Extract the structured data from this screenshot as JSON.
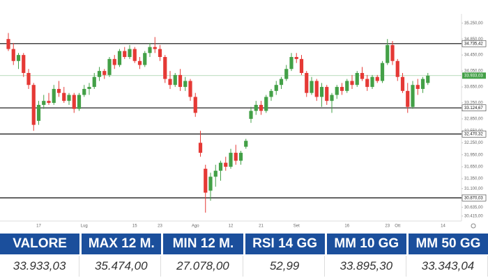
{
  "chart_data": {
    "type": "candlestick",
    "categories": [
      null,
      null,
      null,
      null,
      null,
      null,
      "17",
      null,
      null,
      null,
      null,
      null,
      null,
      null,
      null,
      "Lug",
      null,
      null,
      null,
      null,
      null,
      null,
      null,
      null,
      null,
      "15",
      null,
      null,
      null,
      null,
      "23",
      null,
      null,
      null,
      null,
      null,
      null,
      "Ago",
      null,
      null,
      null,
      null,
      null,
      null,
      "12",
      null,
      null,
      null,
      null,
      null,
      "21",
      null,
      null,
      null,
      null,
      null,
      null,
      "Set",
      null,
      null,
      null,
      null,
      null,
      null,
      null,
      null,
      null,
      "16",
      null,
      null,
      null,
      null,
      null,
      null,
      null,
      "23",
      null,
      "Ott",
      null,
      null,
      null,
      null,
      null,
      null,
      null,
      null,
      "14",
      null,
      null
    ],
    "open": [
      34850,
      34600,
      34300,
      34450,
      34000,
      33700,
      32800,
      33200,
      33300,
      33250,
      33600,
      33500,
      33300,
      33450,
      33100,
      33450,
      33600,
      33650,
      33900,
      34050,
      33950,
      34350,
      34200,
      34550,
      34400,
      34600,
      34300,
      34200,
      34500,
      34650,
      34600,
      34400,
      33850,
      33700,
      33950,
      33650,
      33800,
      33400,
      32250,
      31600,
      31050,
      31400,
      31550,
      31750,
      31650,
      32000,
      31800,
      32150,
      32850,
      33050,
      33200,
      33050,
      33400,
      33550,
      33700,
      33850,
      34100,
      34400,
      34350,
      34000,
      33500,
      33800,
      33400,
      33650,
      33300,
      33450,
      33650,
      33550,
      33800,
      33700,
      34000,
      33850,
      33650,
      33900,
      33800,
      34250,
      34700,
      34300,
      33900,
      33550,
      33150,
      33700,
      33600,
      33750,
      null,
      null,
      null,
      null,
      null
    ],
    "high": [
      35000,
      34750,
      34500,
      34500,
      34100,
      33750,
      33300,
      33450,
      33500,
      33700,
      33800,
      33650,
      33500,
      33500,
      33500,
      33700,
      33750,
      34000,
      34150,
      34100,
      34400,
      34450,
      34600,
      34650,
      34700,
      34650,
      34400,
      34550,
      34750,
      34900,
      34700,
      34450,
      34050,
      34000,
      34100,
      33900,
      33850,
      33500,
      32550,
      31700,
      31500,
      31700,
      31800,
      31900,
      32100,
      32200,
      32050,
      32350,
      33150,
      33300,
      33300,
      33450,
      33600,
      33800,
      33900,
      34200,
      34500,
      34500,
      34450,
      34050,
      33900,
      33850,
      33750,
      33700,
      33500,
      33700,
      33750,
      33850,
      33950,
      34050,
      34150,
      33950,
      33950,
      33950,
      34300,
      34850,
      34800,
      34350,
      34000,
      33750,
      33800,
      33850,
      33900,
      34000,
      null,
      null,
      null,
      null,
      null
    ],
    "low": [
      34550,
      34200,
      34100,
      33900,
      33600,
      32550,
      32700,
      33100,
      33200,
      33200,
      33400,
      33250,
      33200,
      33000,
      33050,
      33400,
      33450,
      33600,
      33800,
      33850,
      33900,
      34100,
      34150,
      34350,
      34350,
      34250,
      34100,
      34150,
      34400,
      34500,
      34300,
      33750,
      33600,
      33650,
      33550,
      33550,
      33300,
      32900,
      31900,
      30500,
      30800,
      31150,
      31300,
      31550,
      31600,
      31700,
      31700,
      32100,
      32750,
      32950,
      32950,
      33000,
      33300,
      33450,
      33600,
      33800,
      34050,
      34250,
      33950,
      33400,
      33450,
      33300,
      33150,
      33200,
      33000,
      33350,
      33450,
      33500,
      33600,
      33650,
      33800,
      33550,
      33600,
      33750,
      33750,
      34200,
      34200,
      33800,
      33500,
      33000,
      33100,
      33450,
      33500,
      33700,
      null,
      null,
      null,
      null,
      null
    ],
    "close": [
      34600,
      34300,
      34450,
      34000,
      33700,
      32700,
      33200,
      33300,
      33250,
      33600,
      33500,
      33300,
      33450,
      33100,
      33450,
      33600,
      33650,
      33900,
      34050,
      33950,
      34350,
      34200,
      34550,
      34400,
      34600,
      34300,
      34200,
      34500,
      34650,
      34600,
      34400,
      33850,
      33700,
      33950,
      33650,
      33800,
      33400,
      33000,
      32000,
      31000,
      31400,
      31550,
      31750,
      31650,
      32000,
      31800,
      32000,
      32300,
      33050,
      33200,
      33050,
      33400,
      33550,
      33700,
      33850,
      34100,
      34400,
      34350,
      34000,
      33500,
      33800,
      33400,
      33650,
      33300,
      33450,
      33650,
      33550,
      33800,
      33700,
      34000,
      33850,
      33650,
      33900,
      33800,
      34250,
      34700,
      34300,
      33900,
      33550,
      33150,
      33700,
      33600,
      33850,
      33933.03,
      null,
      null,
      null,
      null,
      null
    ],
    "up_color": "#43a047",
    "down_color": "#e53935",
    "ylim": [
      30290,
      35480
    ],
    "yticks": [
      {
        "value": 35250,
        "label": "35.250,00"
      },
      {
        "value": 34850,
        "label": "34.850,00"
      },
      {
        "value": 34450,
        "label": "34.450,00"
      },
      {
        "value": 34050,
        "label": "34.050,00"
      },
      {
        "value": 33650,
        "label": "33.650,00"
      },
      {
        "value": 33250,
        "label": "33.250,00"
      },
      {
        "value": 32850,
        "label": "32.850,00"
      },
      {
        "value": 32550,
        "label": "32.550,00"
      },
      {
        "value": 32250,
        "label": "32.250,00"
      },
      {
        "value": 31950,
        "label": "31.950,00"
      },
      {
        "value": 31650,
        "label": "31.650,00"
      },
      {
        "value": 31350,
        "label": "31.350,00"
      },
      {
        "value": 31100,
        "label": "31.100,00"
      },
      {
        "value": 30635,
        "label": "30.635,00"
      },
      {
        "value": 30415,
        "label": "30.415,00"
      }
    ],
    "levels": [
      {
        "value": 34735.42,
        "label": "34.735,42"
      },
      {
        "value": 33124.67,
        "label": "33.124,67"
      },
      {
        "value": 32470.32,
        "label": "32.470,32"
      },
      {
        "value": 30870.03,
        "label": "30.870,03"
      }
    ],
    "last_price": {
      "value": 33933.03,
      "label": "33.933,03",
      "color": "#43a047"
    }
  },
  "table": {
    "headers": [
      "VALORE",
      "MAX 12 M.",
      "MIN 12 M.",
      "RSI 14 GG",
      "MM 10 GG",
      "MM 50 GG"
    ],
    "values": [
      "33.933,03",
      "35.474,00",
      "27.078,00",
      "52,99",
      "33.895,30",
      "33.343,04"
    ]
  }
}
